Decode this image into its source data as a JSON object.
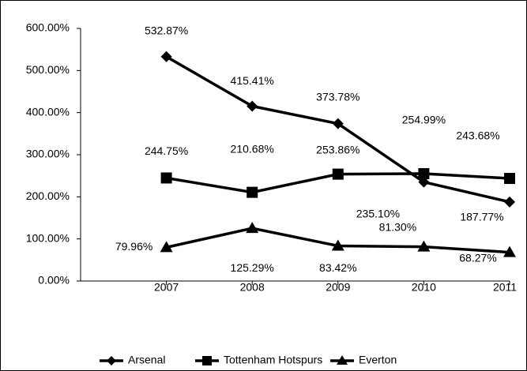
{
  "chart_data": {
    "type": "line",
    "categories": [
      "2007",
      "2008",
      "2009",
      "2010",
      "2011"
    ],
    "series": [
      {
        "name": "Arsenal",
        "color": "#000000",
        "marker": "diamond",
        "values": [
          532.87,
          415.41,
          373.78,
          235.1,
          187.77
        ],
        "value_labels": [
          "532.87%",
          "415.41%",
          "373.78%",
          "235.10%",
          "187.77%"
        ]
      },
      {
        "name": "Tottenham Hotspurs",
        "color": "#000000",
        "marker": "square",
        "values": [
          244.75,
          210.68,
          253.86,
          254.99,
          243.68
        ],
        "value_labels": [
          "244.75%",
          "210.68%",
          "253.86%",
          "254.99%",
          "243.68%"
        ]
      },
      {
        "name": "Everton",
        "color": "#000000",
        "marker": "triangle",
        "values": [
          79.96,
          125.29,
          83.42,
          81.3,
          68.27
        ],
        "value_labels": [
          "79.96%",
          "125.29%",
          "83.42%",
          "81.30%",
          "68.27%"
        ]
      }
    ],
    "ylim": [
      0,
      600
    ],
    "yticks": [
      {
        "value": 0,
        "label": "0.00%"
      },
      {
        "value": 100,
        "label": "100.00%"
      },
      {
        "value": 200,
        "label": "200.00%"
      },
      {
        "value": 300,
        "label": "300.00%"
      },
      {
        "value": 400,
        "label": "400.00%"
      },
      {
        "value": 500,
        "label": "500.00%"
      },
      {
        "value": 600,
        "label": "600.00%"
      }
    ],
    "legend": "bottom"
  }
}
